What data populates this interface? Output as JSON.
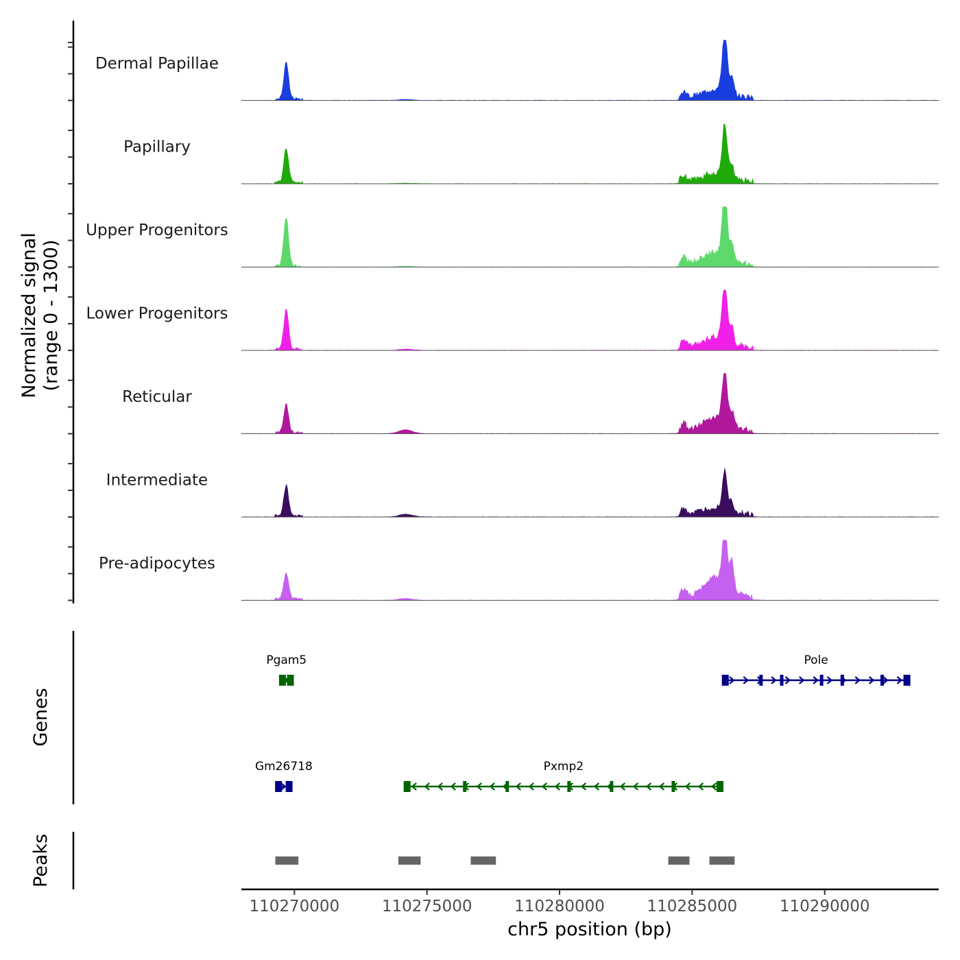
{
  "chart_data": {
    "type": "area",
    "title": "",
    "xlabel": "chr5 position (bp)",
    "ylabel_line1": "Normalized signal",
    "ylabel_line2": "(range 0 - 1300)",
    "genes_label": "Genes",
    "peaks_label": "Peaks",
    "xlim": [
      110268000,
      110294300
    ],
    "ylim": [
      0,
      1300
    ],
    "x_ticks": [
      110270000,
      110275000,
      110280000,
      110285000,
      110290000
    ],
    "x_tick_labels": [
      "110270000",
      "110275000",
      "110280000",
      "110285000",
      "110290000"
    ],
    "signal_peaks": [
      {
        "center": 110269690,
        "width": 90
      },
      {
        "center": 110274200,
        "width": 250
      },
      {
        "center": 110284690,
        "width": 100
      },
      {
        "center": 110286230,
        "width": 90
      },
      {
        "center": 110286500,
        "width": 70
      },
      {
        "center": 110285950,
        "width": 500
      }
    ],
    "series": [
      {
        "name": "Dermal Papillae",
        "color": "#1a3de0",
        "heights": [
          780,
          20,
          110,
          1320,
          320,
          200
        ]
      },
      {
        "name": "Papillary",
        "color": "#1faa0a",
        "heights": [
          740,
          10,
          110,
          1100,
          280,
          180
        ]
      },
      {
        "name": "Upper Progenitors",
        "color": "#5dd86a",
        "heights": [
          1050,
          15,
          160,
          1420,
          300,
          280
        ]
      },
      {
        "name": "Lower Progenitors",
        "color": "#f020e8",
        "heights": [
          860,
          25,
          180,
          1320,
          330,
          240
        ]
      },
      {
        "name": "Reticular",
        "color": "#b0189e",
        "heights": [
          610,
          80,
          160,
          1060,
          270,
          320
        ]
      },
      {
        "name": "Intermediate",
        "color": "#3a0d5e",
        "heights": [
          650,
          60,
          140,
          840,
          210,
          160
        ]
      },
      {
        "name": "Pre-adipocytes",
        "color": "#c560f0",
        "heights": [
          560,
          40,
          180,
          1210,
          600,
          440
        ]
      }
    ],
    "genes": [
      {
        "name": "Pgam5",
        "row": 0,
        "strand": "-",
        "start": 110269550,
        "end": 110269850,
        "color": "#006400"
      },
      {
        "name": "Pole",
        "row": 0,
        "strand": "+",
        "start": 110286250,
        "end": 110293100,
        "color": "#00008b"
      },
      {
        "name": "Gm26718",
        "row": 1,
        "strand": "+",
        "start": 110269400,
        "end": 110269800,
        "color": "#00008b"
      },
      {
        "name": "Pxmp2",
        "row": 1,
        "strand": "-",
        "start": 110274250,
        "end": 110286050,
        "color": "#006400"
      }
    ],
    "peaks": [
      {
        "start": 110269280,
        "end": 110270150
      },
      {
        "start": 110273920,
        "end": 110274760
      },
      {
        "start": 110276650,
        "end": 110277600
      },
      {
        "start": 110284100,
        "end": 110284900
      },
      {
        "start": 110285650,
        "end": 110286600
      }
    ]
  }
}
